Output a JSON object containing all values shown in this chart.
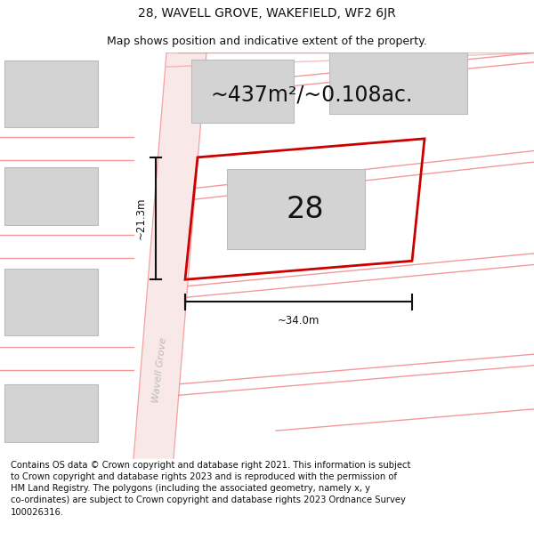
{
  "title": "28, WAVELL GROVE, WAKEFIELD, WF2 6JR",
  "subtitle": "Map shows position and indicative extent of the property.",
  "area_text": "~437m²/~0.108ac.",
  "number_label": "28",
  "dim_width": "~34.0m",
  "dim_height": "~21.3m",
  "footer_text": "Contains OS data © Crown copyright and database right 2021. This information is subject to Crown copyright and database rights 2023 and is reproduced with the permission of HM Land Registry. The polygons (including the associated geometry, namely x, y co-ordinates) are subject to Crown copyright and database rights 2023 Ordnance Survey 100026316.",
  "background_color": "#ffffff",
  "road_color": "#f5c4c4",
  "building_color": "#d3d3d3",
  "building_outline": "#bbbbbb",
  "road_line_color": "#f08080",
  "plot_outline_color": "#cc0000",
  "dimension_color": "#111111",
  "road_label_color": "#cccccc",
  "title_fontsize": 10,
  "subtitle_fontsize": 9,
  "area_fontsize": 17,
  "number_fontsize": 24,
  "footer_fontsize": 7.2,
  "dim_fontsize": 8.5
}
